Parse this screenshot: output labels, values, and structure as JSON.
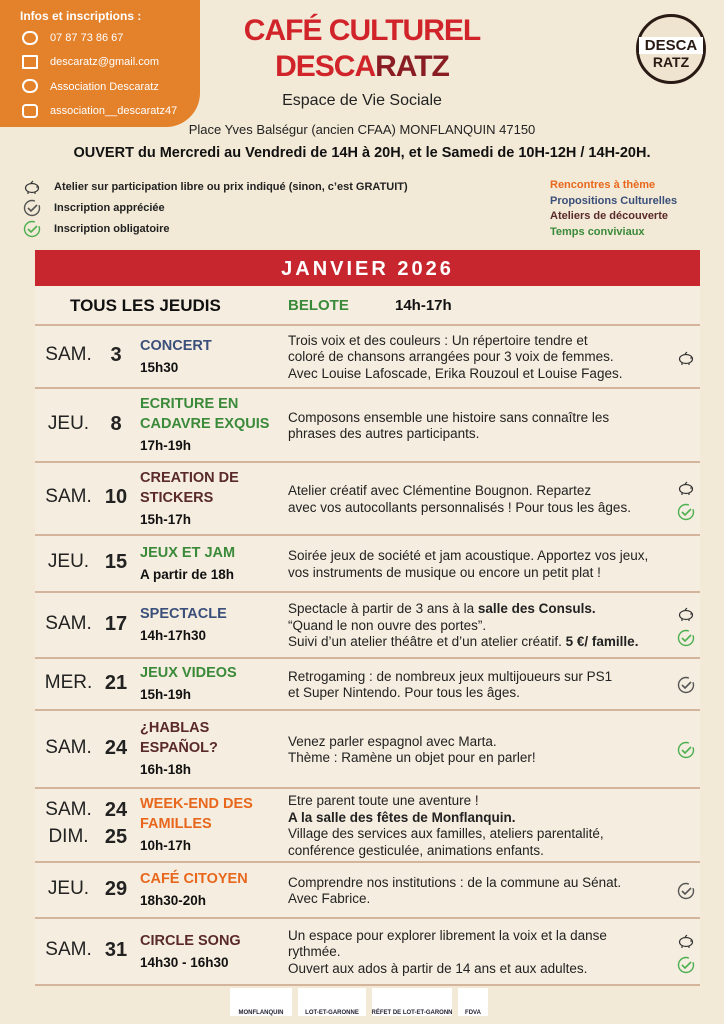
{
  "contact": {
    "title": "Infos et inscriptions :",
    "phone": "07 87 73 86 67",
    "email": "descaratz@gmail.com",
    "facebook": "Association Descaratz",
    "instagram": "association__descaratz47"
  },
  "header": {
    "title": "CAFÉ CULTUREL",
    "brand": [
      "DESCA",
      "RATZ"
    ],
    "subtitle": "Espace de Vie Sociale",
    "address": "Place Yves Balségur (ancien CFAA) MONFLANQUIN 47150",
    "hours": "OUVERT du Mercredi au Vendredi de 14H à 20H, et le Samedi de 10H-12H / 14H-20H."
  },
  "logo": {
    "top": "DESCA",
    "bottom": "RATZ"
  },
  "legend": {
    "icons": [
      {
        "icon": "piggy",
        "label": "Atelier sur participation libre ou prix indiqué (sinon, c’est GRATUIT)"
      },
      {
        "icon": "check-grey",
        "label": "Inscription appréciée"
      },
      {
        "icon": "check-green",
        "label": "Inscription obligatoire"
      }
    ],
    "categories": [
      {
        "label": "Rencontres à thème",
        "color": "#e8671c"
      },
      {
        "label": "Propositions Culturelles",
        "color": "#3a4f7a"
      },
      {
        "label": "Ateliers de découverte",
        "color": "#5a2a2a"
      },
      {
        "label": "Temps conviviaux",
        "color": "#3a8a3a"
      }
    ]
  },
  "agenda": {
    "month": "JANVIER 2026",
    "weekly": {
      "label": "TOUS LES JEUDIS",
      "activity": "BELOTE",
      "time": "14h-17h"
    },
    "events": [
      {
        "days": [
          "SAM."
        ],
        "dates": [
          3
        ],
        "title": [
          "CONCERT"
        ],
        "time": "15h30",
        "color": "#3a4f7a",
        "lines": [
          [
            {
              "text": "Trois voix et des couleurs : Un répertoire tendre et"
            }
          ],
          [
            {
              "text": "coloré de chansons arrangées pour 3 voix de femmes."
            }
          ],
          [
            {
              "text": "Avec Louise Lafoscade, Erika Rouzoul et Louise Fages."
            }
          ]
        ],
        "icons": [
          "piggy"
        ]
      },
      {
        "days": [
          "JEU."
        ],
        "dates": [
          8
        ],
        "title": [
          "ECRITURE EN",
          "CADAVRE EXQUIS"
        ],
        "time": "17h-19h",
        "color": "#3a8a3a",
        "lines": [
          [
            {
              "text": "Composons ensemble une histoire sans connaître les"
            }
          ],
          [
            {
              "text": "phrases des autres participants."
            }
          ]
        ],
        "icons": []
      },
      {
        "days": [
          "SAM."
        ],
        "dates": [
          10
        ],
        "title": [
          "CREATION DE",
          "STICKERS"
        ],
        "time": "15h-17h",
        "color": "#5a2a2a",
        "lines": [
          [
            {
              "text": "Atelier créatif avec Clémentine Bougnon. Repartez"
            }
          ],
          [
            {
              "text": "avec vos autocollants personnalisés ! Pour tous les âges."
            }
          ]
        ],
        "icons": [
          "piggy",
          "check-green"
        ]
      },
      {
        "days": [
          "JEU."
        ],
        "dates": [
          15
        ],
        "title": [
          "JEUX ET JAM"
        ],
        "time": "A partir de 18h",
        "color": "#3a8a3a",
        "lines": [
          [
            {
              "text": "Soirée jeux de société et jam acoustique. Apportez vos jeux,"
            }
          ],
          [
            {
              "text": "vos instruments de musique ou encore un petit plat !"
            }
          ]
        ],
        "icons": []
      },
      {
        "days": [
          "SAM."
        ],
        "dates": [
          17
        ],
        "title": [
          "SPECTACLE"
        ],
        "time": "14h-17h30",
        "color": "#3a4f7a",
        "lines": [
          [
            {
              "text": "Spectacle à partir de 3 ans à la "
            },
            {
              "text": "salle des Consuls.",
              "bold": true
            }
          ],
          [
            {
              "text": "“Quand le non ouvre des portes”."
            }
          ],
          [
            {
              "text": "Suivi d’un atelier théâtre et d’un atelier créatif. "
            },
            {
              "text": "5 €/ famille.",
              "bold": true
            }
          ]
        ],
        "icons": [
          "piggy",
          "check-green"
        ]
      },
      {
        "days": [
          "MER."
        ],
        "dates": [
          21
        ],
        "title": [
          "JEUX VIDEOS"
        ],
        "time": "15h-19h",
        "color": "#3a8a3a",
        "lines": [
          [
            {
              "text": "Retrogaming : de nombreux jeux multijoueurs sur PS1"
            }
          ],
          [
            {
              "text": "et Super Nintendo. Pour tous les âges."
            }
          ]
        ],
        "icons": [
          "check-grey"
        ]
      },
      {
        "days": [
          "SAM."
        ],
        "dates": [
          24
        ],
        "title": [
          "¿HABLAS",
          "ESPAÑOL?"
        ],
        "time": "16h-18h",
        "color": "#5a2a2a",
        "lines": [
          [
            {
              "text": "Venez parler espagnol avec Marta."
            }
          ],
          [
            {
              "text": "Thème : Ramène un objet pour en parler!"
            }
          ]
        ],
        "icons": [
          "check-green"
        ]
      },
      {
        "days": [
          "SAM.",
          "DIM."
        ],
        "dates": [
          24,
          25
        ],
        "title": [
          "WEEK-END DES",
          "FAMILLES"
        ],
        "time": "10h-17h",
        "color": "#e8671c",
        "lines": [
          [
            {
              "text": "Etre parent toute une aventure !"
            }
          ],
          [
            {
              "text": "A la salle des fêtes de Monflanquin.",
              "bold": true
            }
          ],
          [
            {
              "text": "Village des services aux familles, ateliers parentalité,"
            }
          ],
          [
            {
              "text": "conférence gesticulée, animations enfants."
            }
          ]
        ],
        "icons": []
      },
      {
        "days": [
          "JEU."
        ],
        "dates": [
          29
        ],
        "title": [
          "CAFÉ CITOYEN"
        ],
        "time": "18h30-20h",
        "color": "#e8671c",
        "lines": [
          [
            {
              "text": "Comprendre nos institutions : de la commune au Sénat."
            }
          ],
          [
            {
              "text": "Avec Fabrice."
            }
          ]
        ],
        "icons": [
          "check-grey"
        ]
      },
      {
        "days": [
          "SAM."
        ],
        "dates": [
          31
        ],
        "title": [
          "CIRCLE SONG"
        ],
        "time": "14h30 - 16h30",
        "color": "#5a2a2a",
        "lines": [
          [
            {
              "text": "Un espace pour explorer librement la voix et la danse"
            }
          ],
          [
            {
              "text": "rythmée."
            }
          ],
          [
            {
              "text": "Ouvert aux ados à partir de 14 ans et aux adultes."
            }
          ]
        ],
        "icons": [
          "piggy",
          "check-green"
        ]
      }
    ]
  },
  "footer": {
    "logos": [
      "MONFLANQUIN",
      "LOT-ET-GARONNE",
      "PRÉFET DE LOT-ET-GARONNE",
      "FDVA"
    ]
  }
}
